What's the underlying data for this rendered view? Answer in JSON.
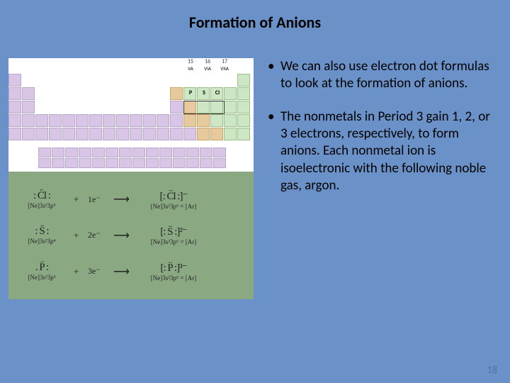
{
  "title": "Formation of Anions",
  "periodic": {
    "group_numbers": [
      "15",
      "16",
      "17"
    ],
    "roman": [
      "VA",
      "VIA",
      "VIIA"
    ],
    "row3_elements": [
      "P",
      "S",
      "Cl"
    ],
    "colors": {
      "metal": "#d9c6e6",
      "nonmetal": "#cde6c3",
      "metalloid": "#e6c99c",
      "bg": "#ffffff"
    }
  },
  "equations_panel_bg": "#8aa882",
  "equations": [
    {
      "start_lewis": ": C̈l :",
      "start_config": "[Ne]3s²3p⁵",
      "plus": "+",
      "gain": "1e⁻",
      "arrow": "⟶",
      "end_lewis": "[: C̈l :]⁻",
      "end_config": "[Ne]3s²3p⁶ = [Ar]"
    },
    {
      "start_lewis": ": S̈ :",
      "start_config": "[Ne]3s²3p⁴",
      "plus": "+",
      "gain": "2e⁻",
      "arrow": "⟶",
      "end_lewis": "[: S̈ :]²⁻",
      "end_config": "[Ne]3s²3p⁶ = [Ar]"
    },
    {
      "start_lewis": ". P̈ :",
      "start_config": "[Ne]3s²3p³",
      "plus": "+",
      "gain": "3e⁻",
      "arrow": "⟶",
      "end_lewis": "[: P̈ :]³⁻",
      "end_config": "[Ne]3s²3p⁶ = [Ar]"
    }
  ],
  "bullets": [
    "We can also use electron dot formulas to look at the formation of anions.",
    "The nonmetals in Period 3 gain 1, 2, or 3 electrons, respectively, to form anions.  Each nonmetal ion is isoelectronic with the following noble gas, argon."
  ],
  "page_number": "18",
  "slide_bg": "#6a92c8"
}
